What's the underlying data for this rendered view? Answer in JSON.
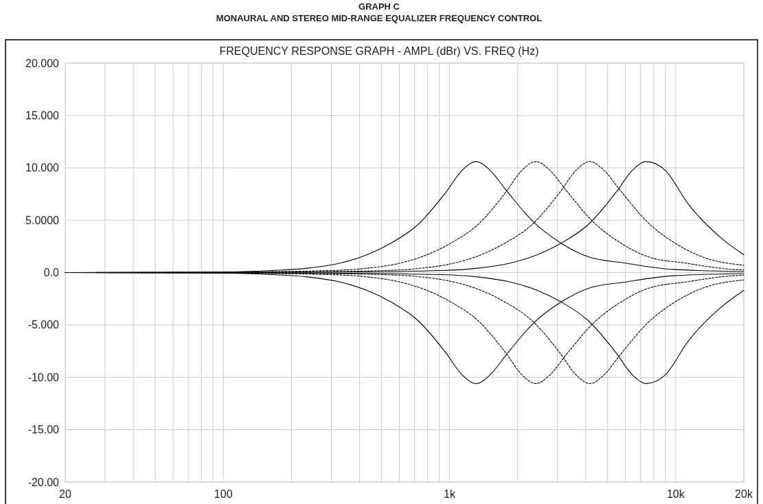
{
  "chart_data": {
    "type": "line",
    "title": "GRAPH C",
    "subtitle": "MONAURAL AND STEREO MID-RANGE EQUALIZER FREQUENCY CONTROL",
    "annotations": [
      "FREQUENCY RESPONSE GRAPH - AMPL (dBr) VS. FREQ (Hz)"
    ],
    "log": "x",
    "grid": true,
    "marker": "none",
    "xlim": [
      20,
      20000
    ],
    "ylim": [
      -20,
      20
    ],
    "xticks": [
      20,
      {
        "value": 30,
        "label": null
      },
      {
        "value": 40,
        "label": null
      },
      {
        "value": 50,
        "label": null
      },
      {
        "value": 60,
        "label": null
      },
      {
        "value": 70,
        "label": null
      },
      {
        "value": 80,
        "label": null
      },
      {
        "value": 90,
        "label": null
      },
      100,
      {
        "value": 200,
        "label": null
      },
      {
        "value": 300,
        "label": null
      },
      {
        "value": 400,
        "label": null
      },
      {
        "value": 500,
        "label": null
      },
      {
        "value": 600,
        "label": null
      },
      {
        "value": 700,
        "label": null
      },
      {
        "value": 800,
        "label": null
      },
      {
        "value": 900,
        "label": null
      },
      {
        "value": 1000,
        "label": "1k"
      },
      {
        "value": 2000,
        "label": null
      },
      {
        "value": 3000,
        "label": null
      },
      {
        "value": 4000,
        "label": null
      },
      {
        "value": 5000,
        "label": null
      },
      {
        "value": 6000,
        "label": null
      },
      {
        "value": 7000,
        "label": null
      },
      {
        "value": 8000,
        "label": null
      },
      {
        "value": 9000,
        "label": null
      },
      {
        "value": 10000,
        "label": "10k"
      },
      {
        "value": 20000,
        "label": "20k"
      }
    ],
    "yticks": [
      {
        "value": -20,
        "label": "-20.00"
      },
      {
        "value": -15,
        "label": "-15.00"
      },
      {
        "value": -10,
        "label": "-10.00"
      },
      {
        "value": -5,
        "label": "-5.000"
      },
      {
        "value": 0,
        "label": "0.0"
      },
      {
        "value": 5,
        "label": "5.0000"
      },
      {
        "value": 10,
        "label": "10.000"
      },
      {
        "value": 15,
        "label": "15.000"
      },
      {
        "value": 20,
        "label": "20.000"
      }
    ],
    "series": [
      {
        "color": "#000000",
        "line_style": "solid",
        "x": [
          20,
          100,
          164,
          232,
          328,
          432,
          550,
          727,
          959,
          1141,
          1310,
          1505,
          1789,
          2358,
          3118,
          4113,
          6013,
          9773,
          20000
        ],
        "values": [
          0,
          0.05,
          0.2,
          0.4,
          0.9,
          1.7,
          2.8,
          4.6,
          7.6,
          9.8,
          10.6,
          9.8,
          7.8,
          4.8,
          2.8,
          1.5,
          0.9,
          0.3,
          0.1
        ]
      },
      {
        "color": "#000000",
        "line_style": "dashed",
        "x": [
          20,
          100,
          301,
          427,
          603,
          795,
          1012,
          1338,
          1764,
          2099,
          2410,
          2769,
          3292,
          4338,
          5736,
          7567,
          11062,
          17979,
          20000
        ],
        "values": [
          0,
          0.05,
          0.2,
          0.4,
          0.9,
          1.7,
          2.8,
          4.6,
          7.6,
          9.8,
          10.6,
          9.8,
          7.8,
          4.8,
          2.8,
          1.5,
          0.9,
          0.3,
          0.25
        ]
      },
      {
        "color": "#000000",
        "line_style": "dashed",
        "x": [
          20,
          100,
          300,
          523,
          740,
          1045,
          1379,
          1756,
          2320,
          3060,
          3641,
          4180,
          4803,
          5710,
          7524,
          9948,
          13125,
          20000
        ],
        "values": [
          0,
          0.02,
          0.1,
          0.2,
          0.4,
          0.9,
          1.7,
          2.8,
          4.6,
          7.6,
          9.8,
          10.6,
          9.8,
          7.8,
          4.8,
          2.8,
          1.5,
          0.7
        ]
      },
      {
        "color": "#000000",
        "line_style": "solid",
        "x": [
          20,
          100,
          300,
          926,
          1312,
          1853,
          2445,
          3112,
          4113,
          5424,
          6454,
          7410,
          8960,
          11400,
          15900,
          20000
        ],
        "values": [
          0,
          0.02,
          0.05,
          0.2,
          0.4,
          0.9,
          1.7,
          2.8,
          4.6,
          7.6,
          9.8,
          10.6,
          9.8,
          6.5,
          3.3,
          1.7
        ]
      },
      {
        "color": "#000000",
        "line_style": "solid",
        "x": [
          20,
          100,
          164,
          232,
          328,
          432,
          550,
          727,
          959,
          1141,
          1310,
          1505,
          1789,
          2358,
          3118,
          4113,
          6013,
          9773,
          20000
        ],
        "values": [
          0,
          -0.05,
          -0.2,
          -0.4,
          -0.9,
          -1.7,
          -2.8,
          -4.6,
          -7.6,
          -9.8,
          -10.6,
          -9.8,
          -7.8,
          -4.8,
          -2.8,
          -1.5,
          -0.9,
          -0.3,
          -0.1
        ]
      },
      {
        "color": "#000000",
        "line_style": "dashed",
        "x": [
          20,
          100,
          301,
          427,
          603,
          795,
          1012,
          1338,
          1764,
          2099,
          2410,
          2769,
          3292,
          4338,
          5736,
          7567,
          11062,
          17979,
          20000
        ],
        "values": [
          0,
          -0.05,
          -0.2,
          -0.4,
          -0.9,
          -1.7,
          -2.8,
          -4.6,
          -7.6,
          -9.8,
          -10.6,
          -9.8,
          -7.8,
          -4.8,
          -2.8,
          -1.5,
          -0.9,
          -0.3,
          -0.25
        ]
      },
      {
        "color": "#000000",
        "line_style": "dashed",
        "x": [
          20,
          100,
          300,
          523,
          740,
          1045,
          1379,
          1756,
          2320,
          3060,
          3641,
          4180,
          4803,
          5710,
          7524,
          9948,
          13125,
          20000
        ],
        "values": [
          0,
          -0.02,
          -0.1,
          -0.2,
          -0.4,
          -0.9,
          -1.7,
          -2.8,
          -4.6,
          -7.6,
          -9.8,
          -10.6,
          -9.8,
          -7.8,
          -4.8,
          -2.8,
          -1.5,
          -0.7
        ]
      },
      {
        "color": "#000000",
        "line_style": "solid",
        "x": [
          20,
          100,
          300,
          926,
          1312,
          1853,
          2445,
          3112,
          4113,
          5424,
          6454,
          7410,
          8960,
          11400,
          15900,
          20000
        ],
        "values": [
          0,
          -0.02,
          -0.05,
          -0.2,
          -0.4,
          -0.9,
          -1.7,
          -2.8,
          -4.6,
          -7.6,
          -9.8,
          -10.6,
          -9.8,
          -6.5,
          -3.3,
          -1.7
        ]
      }
    ]
  }
}
